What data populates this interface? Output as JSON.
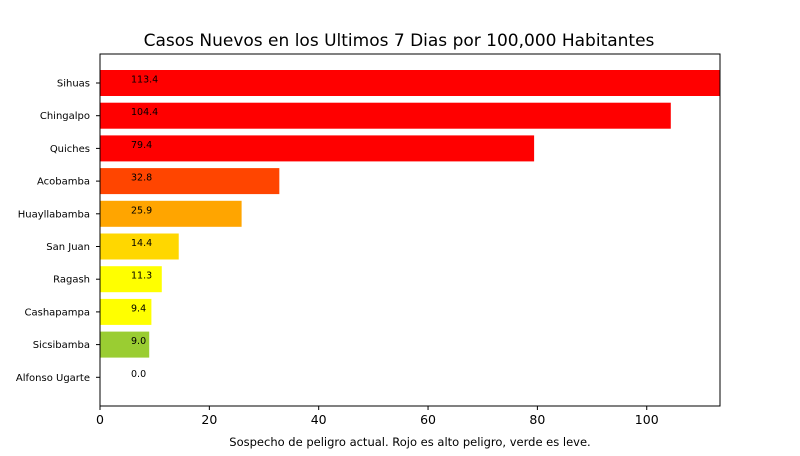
{
  "chart_data": {
    "type": "bar",
    "orientation": "horizontal",
    "title": "Casos Nuevos en los Ultimos 7 Dias por 100,000 Habitantes",
    "xlabel": "Sospecho de peligro actual. Rojo es alto peligro, verde es leve.",
    "ylabel": "",
    "xlim": [
      0,
      113.4
    ],
    "xticks": [
      0,
      20,
      40,
      60,
      80,
      100
    ],
    "grid": false,
    "legend": "none",
    "categories": [
      "Sihuas",
      "Chingalpo",
      "Quiches",
      "Acobamba",
      "Huayllabamba",
      "San Juan",
      "Ragash",
      "Cashapampa",
      "Sicsibamba",
      "Alfonso Ugarte"
    ],
    "values": [
      113.4,
      104.4,
      79.4,
      32.8,
      25.9,
      14.4,
      11.3,
      9.4,
      9.0,
      0.0
    ],
    "value_labels": [
      "113.4",
      "104.4",
      "79.4",
      "32.8",
      "25.9",
      "14.4",
      "11.3",
      "9.4",
      "9.0",
      "0.0"
    ],
    "colors": [
      "#ff0000",
      "#ff0000",
      "#ff0000",
      "#ff4500",
      "#ffa500",
      "#ffd700",
      "#ffff00",
      "#ffff00",
      "#9acd32",
      "#9acd32"
    ]
  }
}
